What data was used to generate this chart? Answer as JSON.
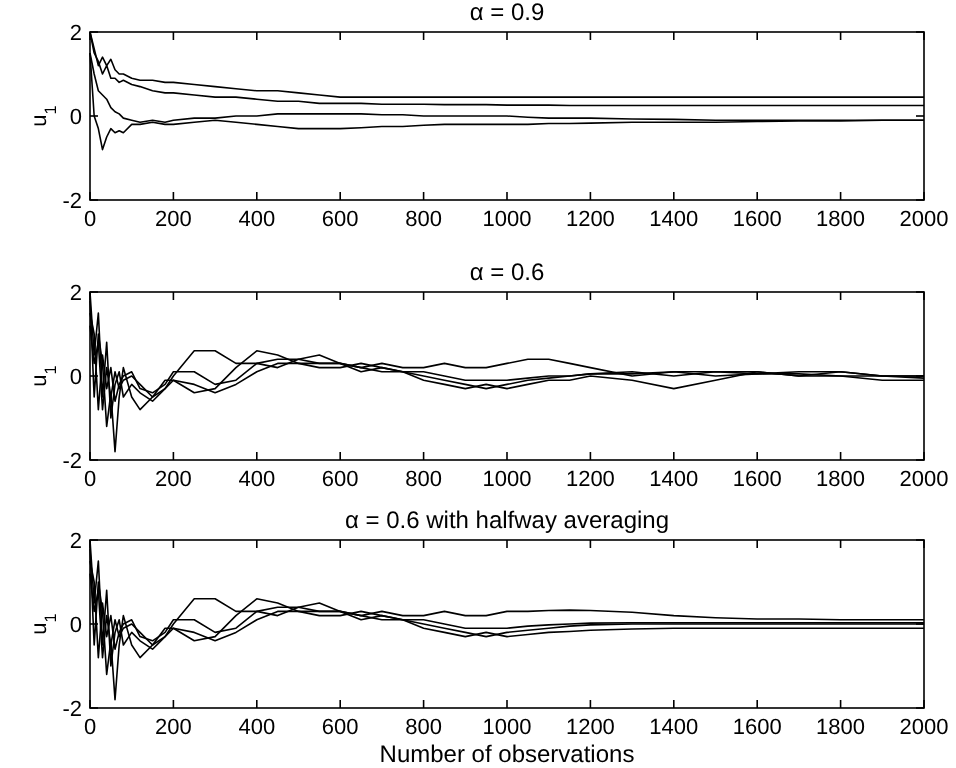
{
  "chart_data": [
    {
      "type": "line",
      "title": "α = 0.9",
      "ylabel": "u$_{1}$",
      "xlim": [
        0,
        2000
      ],
      "xticks": [
        0,
        200,
        400,
        600,
        800,
        1000,
        1200,
        1400,
        1600,
        1800,
        2000
      ],
      "ylim": [
        -2,
        2
      ],
      "yticks": [
        -2,
        0,
        2
      ],
      "x": [
        0,
        10,
        20,
        30,
        40,
        50,
        60,
        70,
        80,
        100,
        120,
        150,
        180,
        200,
        250,
        300,
        350,
        400,
        450,
        500,
        550,
        600,
        650,
        700,
        750,
        800,
        850,
        900,
        950,
        1000,
        1050,
        1100,
        1150,
        1200,
        1300,
        1400,
        1500,
        1600,
        1700,
        1800,
        1900,
        2000
      ],
      "series": [
        {
          "color": "#000000",
          "values": [
            2,
            1.6,
            1.2,
            1.4,
            1.2,
            1.35,
            1.1,
            1.0,
            1.0,
            0.9,
            0.85,
            0.85,
            0.8,
            0.8,
            0.75,
            0.7,
            0.65,
            0.6,
            0.6,
            0.55,
            0.5,
            0.45,
            0.45,
            0.45,
            0.45,
            0.45,
            0.45,
            0.45,
            0.45,
            0.45,
            0.45,
            0.45,
            0.45,
            0.45,
            0.45,
            0.45,
            0.45,
            0.45,
            0.45,
            0.45,
            0.45,
            0.45
          ]
        },
        {
          "color": "#000000",
          "values": [
            2,
            1.5,
            1.3,
            1.0,
            1.2,
            0.9,
            0.9,
            0.8,
            0.85,
            0.75,
            0.7,
            0.6,
            0.55,
            0.55,
            0.5,
            0.45,
            0.45,
            0.4,
            0.35,
            0.35,
            0.3,
            0.3,
            0.3,
            0.28,
            0.28,
            0.28,
            0.27,
            0.27,
            0.27,
            0.26,
            0.26,
            0.26,
            0.25,
            0.25,
            0.25,
            0.25,
            0.25,
            0.25,
            0.25,
            0.25,
            0.25,
            0.25
          ]
        },
        {
          "color": "#000000",
          "values": [
            1.5,
            1.0,
            0.6,
            0.5,
            0.4,
            0.2,
            0.1,
            0.05,
            -0.05,
            -0.1,
            -0.15,
            -0.1,
            -0.15,
            -0.1,
            -0.05,
            -0.05,
            0,
            0,
            0.05,
            0.05,
            0.05,
            0.05,
            0.05,
            0.03,
            0.03,
            0,
            0,
            0,
            0,
            0,
            -0.03,
            -0.05,
            -0.05,
            -0.05,
            -0.07,
            -0.08,
            -0.1,
            -0.1,
            -0.1,
            -0.1,
            -0.1,
            -0.1
          ]
        },
        {
          "color": "#000000",
          "values": [
            1.5,
            0,
            -0.3,
            -0.8,
            -0.5,
            -0.3,
            -0.4,
            -0.35,
            -0.4,
            -0.2,
            -0.2,
            -0.15,
            -0.2,
            -0.2,
            -0.15,
            -0.1,
            -0.15,
            -0.2,
            -0.25,
            -0.3,
            -0.3,
            -0.3,
            -0.28,
            -0.25,
            -0.25,
            -0.22,
            -0.2,
            -0.2,
            -0.2,
            -0.2,
            -0.2,
            -0.18,
            -0.18,
            -0.17,
            -0.15,
            -0.15,
            -0.15,
            -0.13,
            -0.12,
            -0.12,
            -0.1,
            -0.1
          ]
        }
      ]
    },
    {
      "type": "line",
      "title": "α = 0.6",
      "ylabel": "u$_{1}$",
      "xlim": [
        0,
        2000
      ],
      "xticks": [
        0,
        200,
        400,
        600,
        800,
        1000,
        1200,
        1400,
        1600,
        1800,
        2000
      ],
      "ylim": [
        -2,
        2
      ],
      "yticks": [
        -2,
        0,
        2
      ],
      "x": [
        0,
        10,
        20,
        30,
        40,
        50,
        60,
        70,
        80,
        100,
        120,
        150,
        180,
        200,
        250,
        300,
        350,
        400,
        450,
        500,
        550,
        600,
        650,
        700,
        750,
        800,
        850,
        900,
        950,
        1000,
        1050,
        1100,
        1150,
        1200,
        1300,
        1400,
        1500,
        1600,
        1700,
        1800,
        1900,
        2000
      ],
      "series": [
        {
          "color": "#000000",
          "values": [
            2,
            0.5,
            1.5,
            -0.5,
            0.8,
            -1,
            -0.2,
            0.1,
            -0.5,
            -0.2,
            -0.4,
            -0.6,
            -0.3,
            0,
            0.6,
            0.6,
            0.3,
            0.3,
            0.4,
            0.4,
            0.3,
            0.3,
            0.2,
            0.3,
            0.2,
            0.2,
            0.3,
            0.2,
            0.2,
            0.3,
            0.4,
            0.4,
            0.3,
            0.2,
            0,
            0.1,
            0.1,
            0.1,
            0,
            0.1,
            0,
            -0.05
          ]
        },
        {
          "color": "#000000",
          "values": [
            1.8,
            -0.5,
            1,
            0.3,
            -1.2,
            -0.4,
            -1.8,
            -0.5,
            0.2,
            -0.5,
            -0.8,
            -0.5,
            -0.3,
            -0.1,
            -0.4,
            -0.3,
            0.2,
            0.6,
            0.5,
            0.3,
            0.3,
            0.3,
            0.1,
            0.2,
            0.1,
            -0.1,
            -0.2,
            -0.3,
            -0.2,
            -0.3,
            -0.2,
            -0.1,
            -0.1,
            0,
            -0.1,
            -0.3,
            -0.1,
            0.1,
            0,
            0,
            -0.1,
            -0.1
          ]
        },
        {
          "color": "#000000",
          "values": [
            1.5,
            1,
            -0.8,
            0.5,
            -0.3,
            0.2,
            -0.6,
            -0.2,
            0,
            0.1,
            -0.3,
            -0.4,
            -0.2,
            0.1,
            0.1,
            -0.2,
            -0.1,
            0.3,
            0.2,
            0.4,
            0.5,
            0.3,
            0.2,
            0.1,
            0.1,
            0,
            -0.1,
            -0.2,
            -0.3,
            -0.2,
            -0.1,
            -0.05,
            0,
            0.05,
            0.1,
            0,
            0.1,
            0.05,
            0.1,
            0.1,
            0,
            0
          ]
        },
        {
          "color": "#000000",
          "values": [
            1.2,
            0.3,
            0.8,
            -0.8,
            0.2,
            -0.5,
            0.1,
            -0.3,
            -0.1,
            0,
            -0.2,
            -0.5,
            -0.1,
            -0.1,
            -0.2,
            -0.4,
            -0.2,
            0.1,
            0.3,
            0.3,
            0.2,
            0.2,
            0.3,
            0.2,
            0.1,
            0.1,
            0,
            -0.1,
            -0.1,
            -0.1,
            -0.05,
            0,
            0,
            0.05,
            0.05,
            0.1,
            0,
            0.05,
            0.05,
            0,
            0,
            0
          ]
        }
      ]
    },
    {
      "type": "line",
      "title": "α = 0.6 with halfway averaging",
      "xlabel": "Number of observations",
      "ylabel": "u$_{1}$",
      "xlim": [
        0,
        2000
      ],
      "xticks": [
        0,
        200,
        400,
        600,
        800,
        1000,
        1200,
        1400,
        1600,
        1800,
        2000
      ],
      "ylim": [
        -2,
        2
      ],
      "yticks": [
        -2,
        0,
        2
      ],
      "x": [
        0,
        10,
        20,
        30,
        40,
        50,
        60,
        70,
        80,
        100,
        120,
        150,
        180,
        200,
        250,
        300,
        350,
        400,
        450,
        500,
        550,
        600,
        650,
        700,
        750,
        800,
        850,
        900,
        950,
        1000,
        1050,
        1100,
        1150,
        1200,
        1300,
        1400,
        1500,
        1600,
        1700,
        1800,
        1900,
        2000
      ],
      "series": [
        {
          "color": "#000000",
          "values": [
            2,
            0.5,
            1.5,
            -0.5,
            0.8,
            -1,
            -0.2,
            0.1,
            -0.5,
            -0.2,
            -0.4,
            -0.6,
            -0.3,
            0,
            0.6,
            0.6,
            0.3,
            0.3,
            0.4,
            0.4,
            0.3,
            0.3,
            0.2,
            0.3,
            0.2,
            0.2,
            0.3,
            0.2,
            0.2,
            0.3,
            0.3,
            0.32,
            0.33,
            0.32,
            0.28,
            0.2,
            0.15,
            0.12,
            0.12,
            0.1,
            0.1,
            0.1
          ]
        },
        {
          "color": "#000000",
          "values": [
            1.8,
            -0.5,
            1,
            0.3,
            -1.2,
            -0.4,
            -1.8,
            -0.5,
            0.2,
            -0.5,
            -0.8,
            -0.5,
            -0.3,
            -0.1,
            -0.4,
            -0.3,
            0.2,
            0.6,
            0.5,
            0.3,
            0.3,
            0.3,
            0.1,
            0.2,
            0.1,
            -0.1,
            -0.2,
            -0.3,
            -0.2,
            -0.3,
            -0.25,
            -0.2,
            -0.18,
            -0.15,
            -0.12,
            -0.1,
            -0.1,
            -0.1,
            -0.1,
            -0.1,
            -0.1,
            -0.1
          ]
        },
        {
          "color": "#000000",
          "values": [
            1.5,
            1,
            -0.8,
            0.5,
            -0.3,
            0.2,
            -0.6,
            -0.2,
            0,
            0.1,
            -0.3,
            -0.4,
            -0.2,
            0.1,
            0.1,
            -0.2,
            -0.1,
            0.3,
            0.2,
            0.4,
            0.5,
            0.3,
            0.2,
            0.1,
            0.1,
            0,
            -0.1,
            -0.2,
            -0.3,
            -0.2,
            -0.15,
            -0.1,
            -0.05,
            -0.02,
            0,
            0,
            0,
            0,
            0,
            0,
            0,
            0
          ]
        },
        {
          "color": "#000000",
          "values": [
            1.2,
            0.3,
            0.8,
            -0.8,
            0.2,
            -0.5,
            0.1,
            -0.3,
            -0.1,
            0,
            -0.2,
            -0.5,
            -0.1,
            -0.1,
            -0.2,
            -0.4,
            -0.2,
            0.1,
            0.3,
            0.3,
            0.2,
            0.2,
            0.3,
            0.2,
            0.1,
            0.1,
            0,
            -0.1,
            -0.1,
            -0.1,
            -0.05,
            -0.02,
            0,
            0.02,
            0.03,
            0.03,
            0.03,
            0.03,
            0.03,
            0.03,
            0.03,
            0.03
          ]
        }
      ]
    }
  ]
}
